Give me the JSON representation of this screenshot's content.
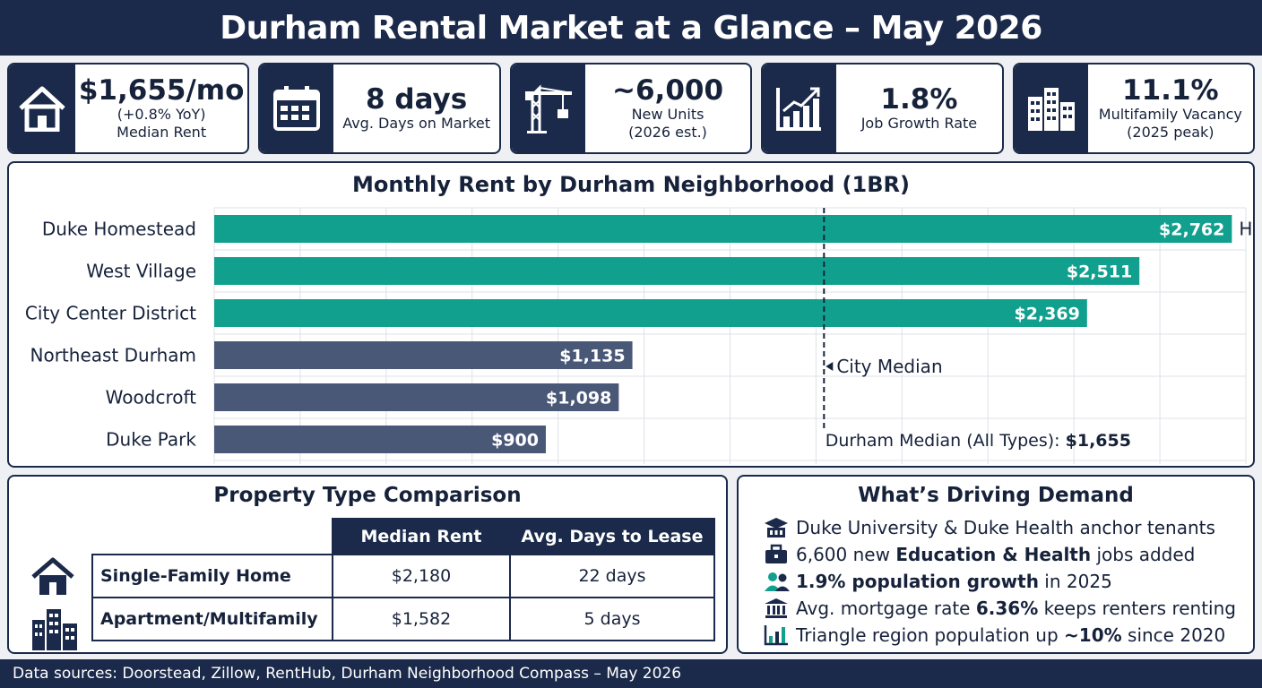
{
  "header": {
    "title": "Durham Rental Market at a Glance – May 2026"
  },
  "kpis": [
    {
      "icon": "house-icon",
      "value": "$1,655/mo",
      "sub1": "(+0.8% YoY)",
      "sub2": "Median Rent"
    },
    {
      "icon": "calendar-icon",
      "value": "8 days",
      "sub1": "Avg. Days on Market",
      "sub2": ""
    },
    {
      "icon": "crane-icon",
      "value": "~6,000",
      "sub1": "New Units",
      "sub2": "(2026 est.)"
    },
    {
      "icon": "growth-chart-icon",
      "value": "1.8%",
      "sub1": "Job Growth Rate",
      "sub2": ""
    },
    {
      "icon": "buildings-icon",
      "value": "11.1%",
      "sub1": "Multifamily Vacancy",
      "sub2": "(2025 peak)"
    }
  ],
  "chart_data": {
    "type": "bar",
    "orientation": "horizontal",
    "title": "Monthly Rent by Durham Neighborhood (1BR)",
    "categories": [
      "Duke Homestead",
      "West Village",
      "City Center District",
      "Northeast Durham",
      "Woodcroft",
      "Duke Park"
    ],
    "values": [
      2762,
      2511,
      2369,
      1135,
      1098,
      900
    ],
    "value_labels": [
      "$2,762",
      "$2,511",
      "$2,369",
      "$1,135",
      "$1,098",
      "$900"
    ],
    "bar_colors": [
      "#12a08e",
      "#12a08e",
      "#12a08e",
      "#4a5878",
      "#4a5878",
      "#4a5878"
    ],
    "xlim": [
      0,
      2800
    ],
    "grid": true,
    "highest_label": "Highest",
    "median_line": {
      "value": 1655,
      "label": "City Median"
    },
    "median_note": {
      "text": "Durham Median (All Types): ",
      "value": "$1,655"
    }
  },
  "property_comparison": {
    "title": "Property Type Comparison",
    "columns": [
      "Median Rent",
      "Avg. Days to Lease"
    ],
    "rows": [
      {
        "type": "Single-Family Home",
        "rent": "$2,180",
        "days": "22 days"
      },
      {
        "type": "Apartment/Multifamily",
        "rent": "$1,582",
        "days": "5 days"
      }
    ]
  },
  "demand": {
    "title": "What’s Driving Demand",
    "items": [
      {
        "icon": "university-icon",
        "pre": "Duke University & Duke Health anchor tenants",
        "bold": "",
        "post": ""
      },
      {
        "icon": "briefcase-icon",
        "pre": "6,600 new ",
        "bold": "Education & Health",
        "post": " jobs added"
      },
      {
        "icon": "people-icon",
        "pre": "",
        "bold": "1.9% population growth",
        "post": " in 2025"
      },
      {
        "icon": "bank-icon",
        "pre": "Avg. mortgage rate ",
        "bold": "6.36%",
        "post": " keeps renters renting"
      },
      {
        "icon": "bar-chart-icon",
        "pre": "Triangle region population up ",
        "bold": "~10%",
        "post": " since 2020"
      }
    ]
  },
  "footer": {
    "text": "Data sources: Doorstead, Zillow, RentHub, Durham Neighborhood Compass – May 2026"
  },
  "colors": {
    "navy": "#1b2a4a",
    "teal": "#12a08e",
    "slate": "#4a5878"
  }
}
